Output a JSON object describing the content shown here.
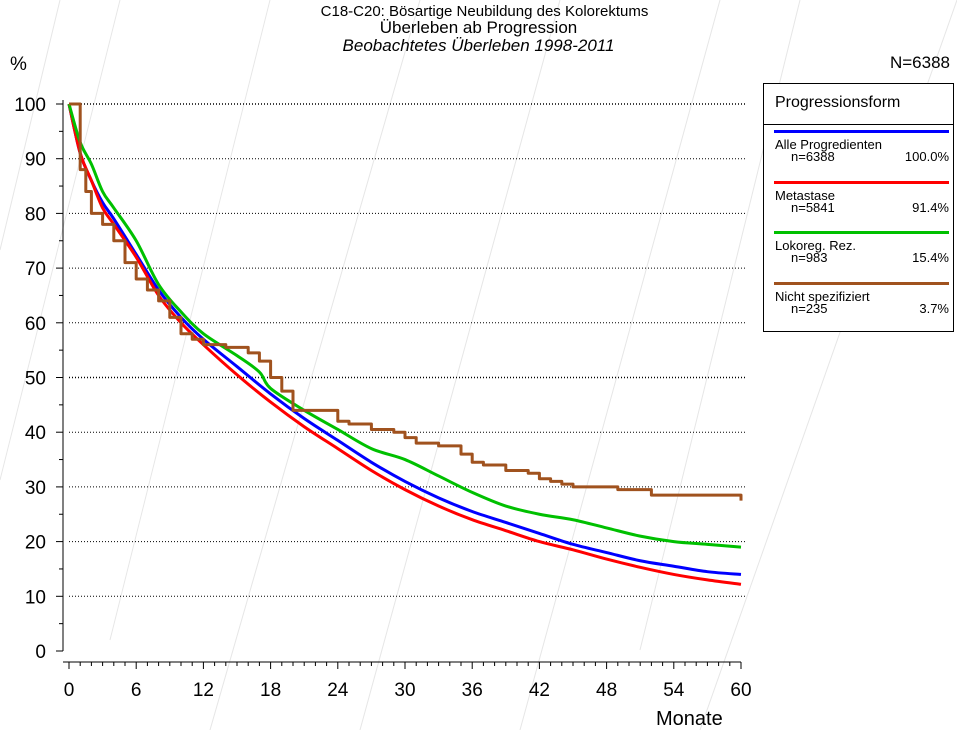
{
  "header": {
    "line1": "C18-C20: Bösartige Neubildung des Kolorektums",
    "line2": "Überleben ab Progression",
    "line3": "Beobachtetes Überleben 1998-2011",
    "y_unit": "%",
    "n_total": "N=6388"
  },
  "legend": {
    "title": "Progressionsform",
    "items": [
      {
        "name": "Alle Progredienten",
        "n": "n=6388",
        "pct": "100.0%",
        "color": "#0000ff"
      },
      {
        "name": "Metastase",
        "n": "n=5841",
        "pct": "91.4%",
        "color": "#ff0000"
      },
      {
        "name": "Lokoreg. Rez.",
        "n": "n=983",
        "pct": "15.4%",
        "color": "#00c000"
      },
      {
        "name": "Nicht spezifiziert",
        "n": "n=235",
        "pct": "3.7%",
        "color": "#a0521e"
      }
    ]
  },
  "chart_data": {
    "type": "line",
    "title": "C18-C20: Bösartige Neubildung des Kolorektums",
    "xlabel": "Monate",
    "ylabel": "%",
    "xlim": [
      0,
      60
    ],
    "ylim": [
      0,
      100
    ],
    "x_ticks": [
      0,
      6,
      12,
      18,
      24,
      30,
      36,
      42,
      48,
      54,
      60
    ],
    "y_ticks": [
      0,
      10,
      20,
      30,
      40,
      50,
      60,
      70,
      80,
      90,
      100
    ],
    "x_tick_labels": [
      "0",
      "6",
      "12",
      "18",
      "24",
      "30",
      "36",
      "42",
      "48",
      "54",
      "60"
    ],
    "y_tick_labels": [
      "0",
      "10",
      "20",
      "30",
      "40",
      "50",
      "60",
      "70",
      "80",
      "90",
      "100"
    ],
    "grid": "horizontal dotted",
    "legend_position": "right",
    "series": [
      {
        "name": "Alle Progredienten",
        "color": "#0000ff",
        "x": [
          0,
          1,
          2,
          3,
          4,
          6,
          8,
          10,
          12,
          15,
          18,
          21,
          24,
          27,
          30,
          33,
          36,
          39,
          42,
          45,
          48,
          51,
          54,
          57,
          60
        ],
        "y": [
          100,
          91,
          86,
          82,
          79,
          72.5,
          66,
          61,
          57,
          52,
          47,
          42.5,
          38.5,
          34.5,
          31,
          28,
          25.5,
          23.5,
          21.5,
          19.5,
          18,
          16.5,
          15.5,
          14.5,
          14
        ]
      },
      {
        "name": "Metastase",
        "color": "#ff0000",
        "x": [
          0,
          1,
          2,
          3,
          4,
          6,
          8,
          10,
          12,
          15,
          18,
          21,
          24,
          27,
          30,
          33,
          36,
          39,
          42,
          45,
          48,
          51,
          54,
          57,
          60
        ],
        "y": [
          100,
          91,
          86,
          81,
          78,
          72,
          65,
          60,
          56,
          50.5,
          45.5,
          41,
          37,
          33,
          29.5,
          26.5,
          24,
          22,
          20,
          18.5,
          16.8,
          15.3,
          14,
          13,
          12.2
        ]
      },
      {
        "name": "Lokoreg. Rez.",
        "color": "#00c000",
        "x": [
          0,
          1,
          2,
          3,
          4,
          6,
          8,
          10,
          12,
          15,
          17,
          18,
          21,
          24,
          27,
          30,
          33,
          36,
          39,
          42,
          45,
          48,
          51,
          54,
          57,
          60
        ],
        "y": [
          100,
          93,
          89,
          84,
          81,
          75,
          67,
          62,
          58,
          54,
          51,
          48,
          44,
          40.5,
          37,
          35,
          32,
          29,
          26.5,
          25,
          24,
          22.5,
          21,
          20,
          19.5,
          19
        ]
      },
      {
        "name": "Nicht spezifiziert",
        "color": "#a0521e",
        "x": [
          0,
          1,
          1.5,
          2,
          3,
          4,
          5,
          6,
          7,
          8,
          9,
          10,
          11,
          12,
          14,
          16,
          17,
          18,
          19,
          20,
          22,
          24,
          25,
          27,
          29,
          30,
          31,
          33,
          35,
          36,
          37,
          39,
          40,
          41,
          42,
          43,
          44,
          45,
          48,
          49,
          51,
          52,
          55,
          59,
          60
        ],
        "y": [
          100,
          88,
          84,
          80,
          78,
          75,
          71,
          68,
          66,
          64,
          61,
          58,
          57,
          56,
          55.5,
          54.5,
          53,
          50,
          47.5,
          44,
          44,
          42,
          41.5,
          40.5,
          40,
          39,
          38,
          37.5,
          36,
          34.5,
          34,
          33,
          33,
          32.5,
          31.5,
          31,
          30.5,
          30,
          30,
          29.5,
          29.5,
          28.5,
          28.5,
          28.5,
          27.5
        ]
      }
    ]
  }
}
